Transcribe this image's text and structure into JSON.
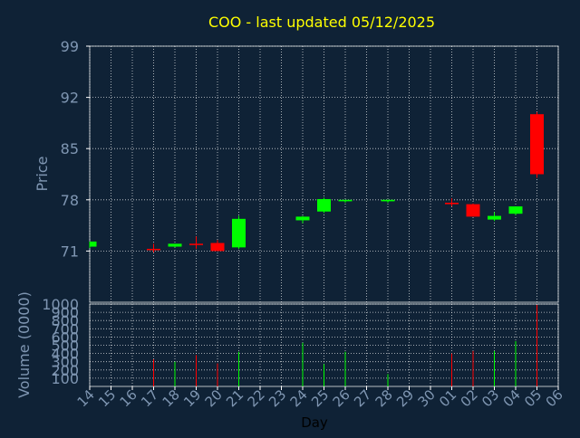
{
  "title": "COO - last updated 05/12/2025",
  "colors": {
    "background": "#0f2236",
    "grid": "#ffffff",
    "frame": "#ffffff",
    "title": "#ffff00",
    "axis_text": "#7f96b2",
    "up": "#00ff00",
    "down": "#ff0000"
  },
  "chart_data": [
    {
      "type": "candlestick",
      "ylabel": "Price",
      "ylim": [
        64,
        99
      ],
      "yticks": [
        71,
        78,
        85,
        92,
        99
      ],
      "grid": true,
      "series": [
        {
          "x": "14",
          "open": 71.6,
          "high": 72.3,
          "low": 71.4,
          "close": 72.3
        },
        {
          "x": "17",
          "open": 71.3,
          "high": 72.0,
          "low": 70.8,
          "close": 71.2
        },
        {
          "x": "18",
          "open": 71.6,
          "high": 72.0,
          "low": 71.5,
          "close": 72.0
        },
        {
          "x": "19",
          "open": 72.0,
          "high": 73.0,
          "low": 71.3,
          "close": 71.9
        },
        {
          "x": "20",
          "open": 72.1,
          "high": 72.5,
          "low": 71.0,
          "close": 71.0
        },
        {
          "x": "21",
          "open": 71.5,
          "high": 75.8,
          "low": 71.3,
          "close": 75.4
        },
        {
          "x": "24",
          "open": 75.2,
          "high": 75.8,
          "low": 74.8,
          "close": 75.7
        },
        {
          "x": "25",
          "open": 76.4,
          "high": 78.3,
          "low": 76.2,
          "close": 78.1
        },
        {
          "x": "26",
          "open": 77.8,
          "high": 78.0,
          "low": 77.6,
          "close": 78.0
        },
        {
          "x": "28",
          "open": 77.8,
          "high": 78.0,
          "low": 77.6,
          "close": 78.0
        },
        {
          "x": "01",
          "open": 77.6,
          "high": 78.2,
          "low": 77.1,
          "close": 77.4
        },
        {
          "x": "02",
          "open": 77.4,
          "high": 77.5,
          "low": 75.7,
          "close": 75.7
        },
        {
          "x": "03",
          "open": 75.3,
          "high": 76.3,
          "low": 75.1,
          "close": 75.8
        },
        {
          "x": "04",
          "open": 76.1,
          "high": 77.1,
          "low": 75.9,
          "close": 77.1
        },
        {
          "x": "05",
          "open": 89.7,
          "high": 90.0,
          "low": 81.0,
          "close": 81.5
        }
      ]
    },
    {
      "type": "bar",
      "xlabel": "Day",
      "ylabel": "Volume (0000)",
      "ylim": [
        0,
        1000
      ],
      "yticks": [
        100,
        200,
        300,
        400,
        500,
        600,
        700,
        800,
        900,
        1000
      ],
      "categories": [
        "14",
        "15",
        "16",
        "17",
        "18",
        "19",
        "20",
        "21",
        "22",
        "23",
        "24",
        "25",
        "26",
        "27",
        "28",
        "29",
        "30",
        "01",
        "02",
        "03",
        "04",
        "05",
        "06"
      ],
      "series": [
        {
          "x": "17",
          "value": 330,
          "direction": "down"
        },
        {
          "x": "18",
          "value": 300,
          "direction": "up"
        },
        {
          "x": "19",
          "value": 380,
          "direction": "down"
        },
        {
          "x": "20",
          "value": 280,
          "direction": "down"
        },
        {
          "x": "21",
          "value": 420,
          "direction": "up"
        },
        {
          "x": "24",
          "value": 530,
          "direction": "up"
        },
        {
          "x": "25",
          "value": 270,
          "direction": "up"
        },
        {
          "x": "26",
          "value": 420,
          "direction": "up"
        },
        {
          "x": "28",
          "value": 150,
          "direction": "up"
        },
        {
          "x": "01",
          "value": 400,
          "direction": "down"
        },
        {
          "x": "02",
          "value": 430,
          "direction": "down"
        },
        {
          "x": "03",
          "value": 430,
          "direction": "up"
        },
        {
          "x": "04",
          "value": 550,
          "direction": "up"
        },
        {
          "x": "05",
          "value": 990,
          "direction": "down"
        }
      ]
    }
  ]
}
